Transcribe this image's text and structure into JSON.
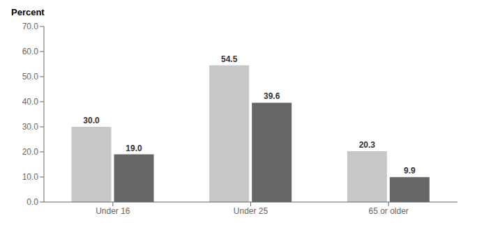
{
  "chart_data": {
    "type": "bar",
    "ylabel": "Percent",
    "categories": [
      "Under 16",
      "Under 25",
      "65 or older"
    ],
    "series": [
      {
        "color": "#c8c8c8",
        "values": [
          30.0,
          54.5,
          20.3
        ],
        "value_labels": [
          "30.0",
          "54.5",
          "20.3"
        ]
      },
      {
        "color": "#666666",
        "values": [
          19.0,
          39.6,
          9.9
        ],
        "value_labels": [
          "19.0",
          "39.6",
          "9.9"
        ]
      }
    ],
    "ylim": [
      0,
      70
    ],
    "yticks": [
      {
        "value": 0,
        "label": "0.0"
      },
      {
        "value": 10,
        "label": "10.0"
      },
      {
        "value": 20,
        "label": "20.0"
      },
      {
        "value": 30,
        "label": "30.0"
      },
      {
        "value": 40,
        "label": "40.0"
      },
      {
        "value": 50,
        "label": "50.0"
      },
      {
        "value": 60,
        "label": "60.0"
      },
      {
        "value": 70,
        "label": "70.0"
      }
    ],
    "data_labels": true,
    "grid": false
  }
}
